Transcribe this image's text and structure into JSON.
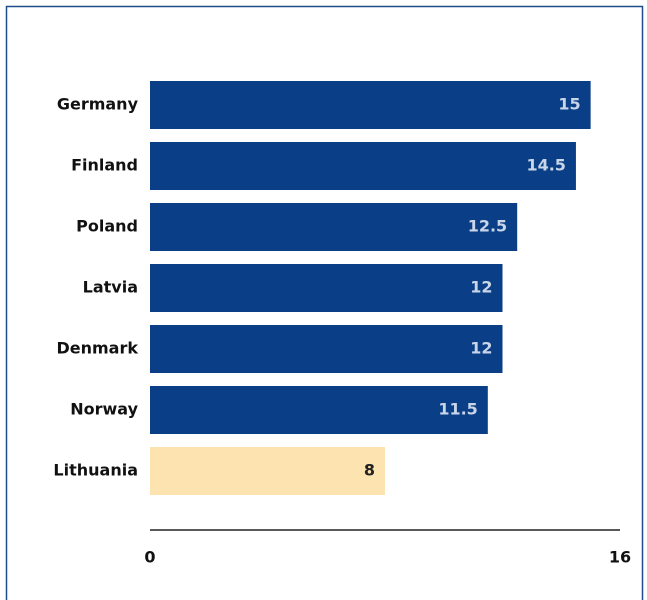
{
  "chart_data": {
    "type": "bar",
    "orientation": "horizontal",
    "categories": [
      "Germany",
      "Finland",
      "Poland",
      "Latvia",
      "Denmark",
      "Norway",
      "Lithuania"
    ],
    "values": [
      15,
      14.5,
      12.5,
      12,
      12,
      11.5,
      8
    ],
    "colors": [
      "#0a3f87",
      "#0a3f87",
      "#0a3f87",
      "#0a3f87",
      "#0a3f87",
      "#0a3f87",
      "#fde3b0"
    ],
    "xlim": [
      0,
      16
    ],
    "xticks": [
      0,
      16
    ]
  }
}
